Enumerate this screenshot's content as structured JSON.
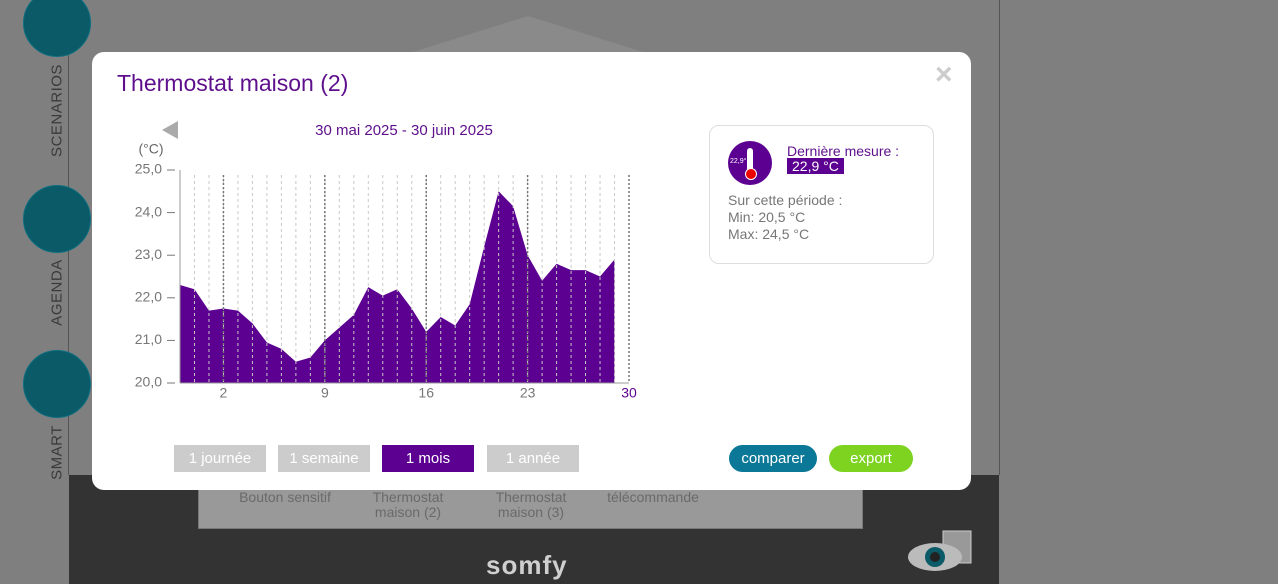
{
  "sidebar": {
    "items": [
      "SCENARIOS",
      "AGENDA",
      "SMART"
    ]
  },
  "background": {
    "devices": [
      "Bouton sensitif",
      "Thermostat maison (2)",
      "Thermostat maison (3)",
      "télécommande"
    ],
    "brand": "somfy"
  },
  "modal": {
    "title": "Thermostat maison (2)",
    "close": "×",
    "info": {
      "icon_label": "22,9°",
      "last_label": "Dernière mesure :",
      "last_value": "22,9 °C",
      "period_label": "Sur cette période :",
      "min": "Min: 20,5 °C",
      "max": "Max: 24,5 °C"
    },
    "ranges": [
      "1 journée",
      "1 semaine",
      "1 mois",
      "1 année"
    ],
    "selected_range": 2,
    "actions": [
      "comparer",
      "export"
    ]
  },
  "chart_data": {
    "type": "area",
    "title": "30 mai 2025 - 30 juin 2025",
    "y_label": "(°C)",
    "color": "#5c0091",
    "x": [
      -1,
      0,
      1,
      2,
      3,
      4,
      5,
      6,
      7,
      8,
      9,
      10,
      11,
      12,
      13,
      14,
      15,
      16,
      17,
      18,
      19,
      20,
      21,
      22,
      23,
      24,
      25,
      26,
      27,
      28,
      29
    ],
    "values": [
      22.3,
      22.2,
      21.7,
      21.75,
      21.7,
      21.4,
      20.95,
      20.8,
      20.5,
      20.6,
      21.0,
      21.3,
      21.6,
      22.25,
      22.05,
      22.2,
      21.75,
      21.2,
      21.55,
      21.35,
      21.85,
      23.2,
      24.5,
      24.15,
      23.0,
      22.4,
      22.8,
      22.65,
      22.65,
      22.5,
      22.9
    ],
    "xlim": [
      -1,
      30
    ],
    "xticks": [
      2,
      9,
      16,
      23,
      30
    ],
    "ylim": [
      20,
      25
    ],
    "yticks": [
      {
        "value": 20,
        "label": "20,0"
      },
      {
        "value": 21,
        "label": "21,0"
      },
      {
        "value": 22,
        "label": "22,0"
      },
      {
        "value": 23,
        "label": "23,0"
      },
      {
        "value": 24,
        "label": "24,0"
      },
      {
        "value": 25,
        "label": "25,0"
      }
    ]
  }
}
